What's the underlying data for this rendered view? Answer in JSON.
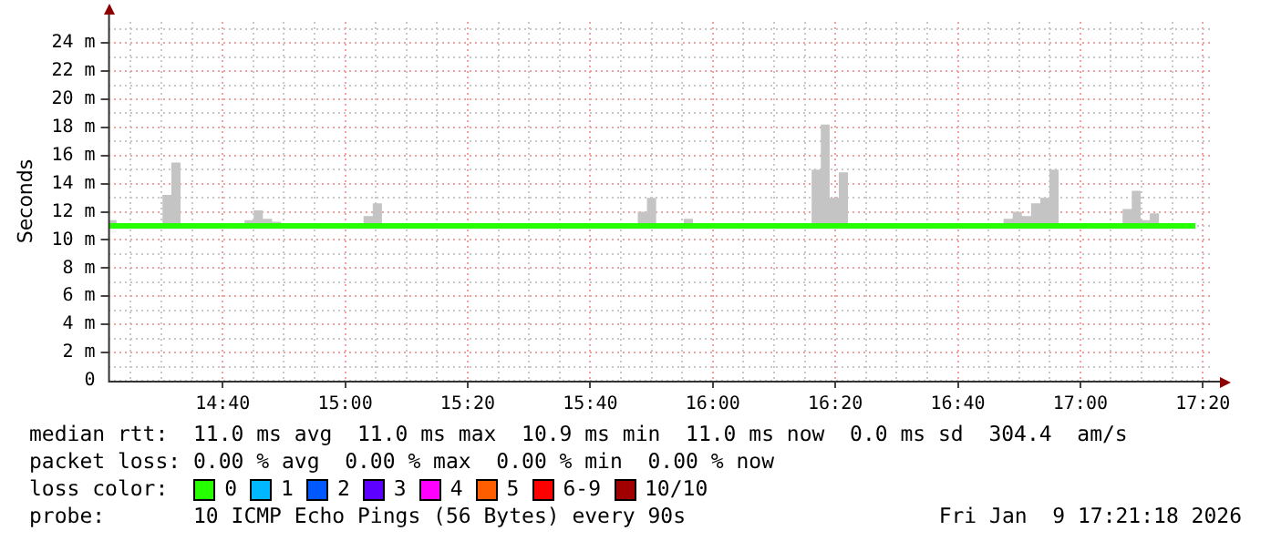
{
  "chart_data": {
    "type": "step",
    "ylabel": "Seconds",
    "legend_title": "loss color:",
    "legend": "bottom",
    "grid": true,
    "x": [
      14.358,
      14.378,
      14.428,
      14.453,
      14.503,
      14.527,
      14.552,
      14.577,
      14.726,
      14.751,
      14.776,
      14.801,
      14.826,
      14.851,
      14.975,
      15.0,
      15.05,
      15.075,
      15.1,
      15.174,
      15.199,
      15.224,
      15.299,
      15.348,
      15.423,
      15.473,
      15.498,
      15.771,
      15.796,
      15.821,
      15.846,
      15.871,
      15.896,
      15.921,
      15.946,
      15.995,
      16.02,
      16.045,
      16.07,
      16.095,
      16.119,
      16.144,
      16.244,
      16.269,
      16.294,
      16.318,
      16.343,
      16.368,
      16.393,
      16.443,
      16.692,
      16.717,
      16.791,
      16.816,
      16.841,
      16.866,
      16.891,
      16.916,
      16.941,
      17.09,
      17.115,
      17.14,
      17.164,
      17.189,
      17.214,
      17.313
    ],
    "xlim": [
      14.355,
      17.36
    ],
    "xticks": [
      {
        "value": 14.4167,
        "label": null
      },
      {
        "value": 14.5,
        "label": null
      },
      {
        "value": 14.5833,
        "label": null
      },
      {
        "value": 14.6667,
        "label": "14:40"
      },
      {
        "value": 14.75,
        "label": null
      },
      {
        "value": 14.8333,
        "label": null
      },
      {
        "value": 14.9167,
        "label": null
      },
      {
        "value": 15,
        "label": "15:00"
      },
      {
        "value": 15.0833,
        "label": null
      },
      {
        "value": 15.1667,
        "label": null
      },
      {
        "value": 15.25,
        "label": null
      },
      {
        "value": 15.3333,
        "label": "15:20"
      },
      {
        "value": 15.4167,
        "label": null
      },
      {
        "value": 15.5,
        "label": null
      },
      {
        "value": 15.5833,
        "label": null
      },
      {
        "value": 15.6667,
        "label": "15:40"
      },
      {
        "value": 15.75,
        "label": null
      },
      {
        "value": 15.8333,
        "label": null
      },
      {
        "value": 15.9167,
        "label": null
      },
      {
        "value": 16,
        "label": "16:00"
      },
      {
        "value": 16.0833,
        "label": null
      },
      {
        "value": 16.1667,
        "label": null
      },
      {
        "value": 16.25,
        "label": null
      },
      {
        "value": 16.3333,
        "label": "16:20"
      },
      {
        "value": 16.4167,
        "label": null
      },
      {
        "value": 16.5,
        "label": null
      },
      {
        "value": 16.5833,
        "label": null
      },
      {
        "value": 16.6667,
        "label": "16:40"
      },
      {
        "value": 16.75,
        "label": null
      },
      {
        "value": 16.8333,
        "label": null
      },
      {
        "value": 16.9167,
        "label": null
      },
      {
        "value": 17,
        "label": "17:00"
      },
      {
        "value": 17.0833,
        "label": null
      },
      {
        "value": 17.1667,
        "label": null
      },
      {
        "value": 17.25,
        "label": null
      },
      {
        "value": 17.3333,
        "label": "17:20"
      }
    ],
    "ylim": [
      0,
      25.5
    ],
    "yticks": [
      0,
      {
        "value": 1,
        "label": null
      },
      {
        "value": 2,
        "label": "2 m"
      },
      {
        "value": 3,
        "label": null
      },
      {
        "value": 4,
        "label": "4 m"
      },
      {
        "value": 5,
        "label": null
      },
      {
        "value": 6,
        "label": "6 m"
      },
      {
        "value": 7,
        "label": null
      },
      {
        "value": 8,
        "label": "8 m"
      },
      {
        "value": 9,
        "label": null
      },
      {
        "value": 10,
        "label": "10 m"
      },
      {
        "value": 11,
        "label": null
      },
      {
        "value": 12,
        "label": "12 m"
      },
      {
        "value": 13,
        "label": null
      },
      {
        "value": 14,
        "label": "14 m"
      },
      {
        "value": 15,
        "label": null
      },
      {
        "value": 16,
        "label": "16 m"
      },
      {
        "value": 17,
        "label": null
      },
      {
        "value": 18,
        "label": "18 m"
      },
      {
        "value": 19,
        "label": null
      },
      {
        "value": 20,
        "label": "20 m"
      },
      {
        "value": 21,
        "label": null
      },
      {
        "value": 22,
        "label": "22 m"
      },
      {
        "value": 23,
        "label": null
      },
      {
        "value": 24,
        "label": "24 m"
      },
      {
        "value": 25,
        "label": null
      }
    ],
    "series": [
      {
        "name": "0",
        "color": "#26ff00",
        "values": [
          11,
          11,
          11,
          11,
          11,
          11,
          11,
          11,
          11,
          11,
          11,
          11,
          11,
          11,
          11,
          11,
          11,
          11,
          11,
          11,
          11,
          11,
          11,
          11,
          11,
          11,
          11,
          11,
          11,
          11,
          11,
          11,
          11,
          11,
          11,
          11,
          11,
          11,
          11,
          11,
          11,
          11,
          11,
          11,
          11,
          11,
          11,
          11,
          11,
          11,
          11,
          11,
          11,
          11,
          11,
          11,
          11,
          11,
          11,
          11,
          11,
          11,
          11,
          11,
          11,
          11
        ],
        "lower": [
          10.8,
          10.8,
          10.8,
          10.8,
          10.8,
          10.8,
          10.8,
          10.8,
          10.8,
          10.8,
          10.8,
          10.8,
          10.8,
          10.8,
          10.8,
          10.8,
          10.8,
          10.8,
          10.8,
          10.8,
          10.8,
          10.8,
          10.8,
          10.8,
          10.8,
          10.8,
          10.8,
          10.8,
          10.8,
          10.8,
          10.8,
          10.8,
          10.8,
          10.8,
          10.8,
          10.8,
          10.8,
          10.8,
          10.8,
          10.8,
          10.8,
          10.8,
          10.8,
          10.8,
          10.8,
          10.8,
          10.8,
          10.8,
          10.8,
          10.8,
          10.8,
          10.8,
          10.8,
          10.8,
          10.8,
          10.8,
          10.8,
          10.8,
          10.8,
          10.8,
          10.8,
          10.8,
          10.8,
          10.8,
          10.8,
          10.8
        ],
        "upper": [
          11.4,
          11.0,
          11.1,
          11.0,
          13.2,
          15.5,
          11.1,
          11.0,
          11.4,
          12.1,
          11.5,
          11.3,
          11.1,
          11.0,
          11.1,
          11.0,
          11.7,
          12.6,
          11.0,
          11.1,
          11.0,
          11.1,
          11.0,
          11.1,
          11.2,
          11.2,
          11.0,
          11.2,
          12.0,
          13.0,
          11.2,
          11.0,
          11.2,
          11.5,
          11.1,
          11.0,
          11.1,
          11.2,
          11.1,
          11.0,
          11.1,
          11.0,
          11.2,
          15.0,
          18.2,
          13.0,
          14.8,
          11.0,
          11.2,
          11.0,
          11.1,
          11.0,
          11.5,
          12.0,
          11.7,
          12.6,
          13.0,
          15.0,
          11.0,
          11.1,
          12.2,
          13.5,
          11.4,
          11.9,
          11.0,
          11.0
        ]
      },
      {
        "name": "1",
        "color": "#00b8ff",
        "values": [
          null,
          null,
          null,
          null,
          null,
          null,
          null,
          null,
          null,
          null,
          null,
          null,
          null,
          null,
          null,
          null,
          null,
          null,
          null,
          null,
          null,
          null,
          null,
          null,
          null,
          null,
          null,
          null,
          null,
          null,
          null,
          null,
          null,
          null,
          null,
          null,
          null,
          null,
          null,
          null,
          null,
          null,
          null,
          null,
          null,
          null,
          null,
          null,
          null,
          null,
          null,
          null,
          null,
          null,
          null,
          null,
          null,
          null,
          null,
          null,
          null,
          null,
          null,
          null,
          null,
          null
        ]
      },
      {
        "name": "2",
        "color": "#0059ff",
        "values": [
          null,
          null,
          null,
          null,
          null,
          null,
          null,
          null,
          null,
          null,
          null,
          null,
          null,
          null,
          null,
          null,
          null,
          null,
          null,
          null,
          null,
          null,
          null,
          null,
          null,
          null,
          null,
          null,
          null,
          null,
          null,
          null,
          null,
          null,
          null,
          null,
          null,
          null,
          null,
          null,
          null,
          null,
          null,
          null,
          null,
          null,
          null,
          null,
          null,
          null,
          null,
          null,
          null,
          null,
          null,
          null,
          null,
          null,
          null,
          null,
          null,
          null,
          null,
          null,
          null,
          null
        ]
      },
      {
        "name": "3",
        "color": "#5e00ff",
        "values": [
          null,
          null,
          null,
          null,
          null,
          null,
          null,
          null,
          null,
          null,
          null,
          null,
          null,
          null,
          null,
          null,
          null,
          null,
          null,
          null,
          null,
          null,
          null,
          null,
          null,
          null,
          null,
          null,
          null,
          null,
          null,
          null,
          null,
          null,
          null,
          null,
          null,
          null,
          null,
          null,
          null,
          null,
          null,
          null,
          null,
          null,
          null,
          null,
          null,
          null,
          null,
          null,
          null,
          null,
          null,
          null,
          null,
          null,
          null,
          null,
          null,
          null,
          null,
          null,
          null,
          null
        ]
      },
      {
        "name": "4",
        "color": "#ff00ff",
        "values": [
          null,
          null,
          null,
          null,
          null,
          null,
          null,
          null,
          null,
          null,
          null,
          null,
          null,
          null,
          null,
          null,
          null,
          null,
          null,
          null,
          null,
          null,
          null,
          null,
          null,
          null,
          null,
          null,
          null,
          null,
          null,
          null,
          null,
          null,
          null,
          null,
          null,
          null,
          null,
          null,
          null,
          null,
          null,
          null,
          null,
          null,
          null,
          null,
          null,
          null,
          null,
          null,
          null,
          null,
          null,
          null,
          null,
          null,
          null,
          null,
          null,
          null,
          null,
          null,
          null,
          null
        ]
      },
      {
        "name": "5",
        "color": "#ff5e00",
        "values": [
          null,
          null,
          null,
          null,
          null,
          null,
          null,
          null,
          null,
          null,
          null,
          null,
          null,
          null,
          null,
          null,
          null,
          null,
          null,
          null,
          null,
          null,
          null,
          null,
          null,
          null,
          null,
          null,
          null,
          null,
          null,
          null,
          null,
          null,
          null,
          null,
          null,
          null,
          null,
          null,
          null,
          null,
          null,
          null,
          null,
          null,
          null,
          null,
          null,
          null,
          null,
          null,
          null,
          null,
          null,
          null,
          null,
          null,
          null,
          null,
          null,
          null,
          null,
          null,
          null,
          null
        ]
      },
      {
        "name": "6-9",
        "color": "#ff0000",
        "values": [
          null,
          null,
          null,
          null,
          null,
          null,
          null,
          null,
          null,
          null,
          null,
          null,
          null,
          null,
          null,
          null,
          null,
          null,
          null,
          null,
          null,
          null,
          null,
          null,
          null,
          null,
          null,
          null,
          null,
          null,
          null,
          null,
          null,
          null,
          null,
          null,
          null,
          null,
          null,
          null,
          null,
          null,
          null,
          null,
          null,
          null,
          null,
          null,
          null,
          null,
          null,
          null,
          null,
          null,
          null,
          null,
          null,
          null,
          null,
          null,
          null,
          null,
          null,
          null,
          null,
          null
        ]
      },
      {
        "name": "10/10",
        "color": "#a10000",
        "values": [
          null,
          null,
          null,
          null,
          null,
          null,
          null,
          null,
          null,
          null,
          null,
          null,
          null,
          null,
          null,
          null,
          null,
          null,
          null,
          null,
          null,
          null,
          null,
          null,
          null,
          null,
          null,
          null,
          null,
          null,
          null,
          null,
          null,
          null,
          null,
          null,
          null,
          null,
          null,
          null,
          null,
          null,
          null,
          null,
          null,
          null,
          null,
          null,
          null,
          null,
          null,
          null,
          null,
          null,
          null,
          null,
          null,
          null,
          null,
          null,
          null,
          null,
          null,
          null,
          null,
          null
        ]
      }
    ],
    "annotations": [
      "median rtt:  11.0 ms avg  11.0 ms max  10.9 ms min  11.0 ms now  0.0 ms sd  304.4  am/s",
      "packet loss: 0.00 % avg  0.00 % max  0.00 % min  0.00 % now",
      "probe:       10 ICMP Echo Pings (56 Bytes) every 90s",
      "Fri Jan  9 17:21:18 2026"
    ]
  }
}
